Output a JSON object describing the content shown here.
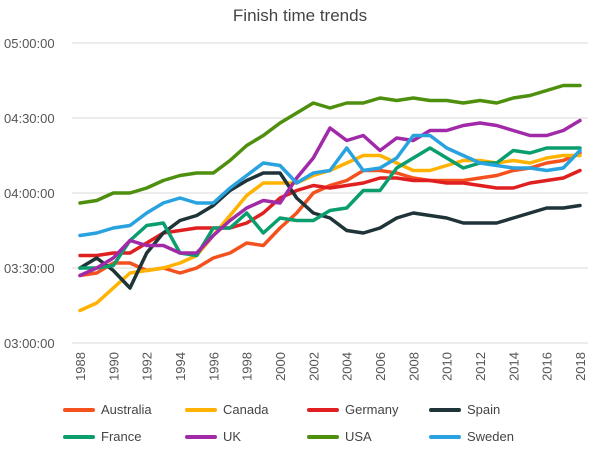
{
  "chart_data": {
    "type": "line",
    "title": "Finish time trends",
    "xlabel": "",
    "ylabel": "",
    "x": [
      1988,
      1989,
      1990,
      1991,
      1992,
      1993,
      1994,
      1995,
      1996,
      1997,
      1998,
      1999,
      2000,
      2001,
      2002,
      2003,
      2004,
      2005,
      2006,
      2007,
      2008,
      2009,
      2010,
      2011,
      2012,
      2013,
      2014,
      2015,
      2016,
      2017,
      2018
    ],
    "xticks": [
      "1988",
      "1990",
      "1992",
      "1994",
      "1996",
      "1998",
      "2000",
      "2002",
      "2004",
      "2006",
      "2008",
      "2010",
      "2012",
      "2014",
      "2016",
      "2018"
    ],
    "yticks": [
      "03:00:00",
      "03:30:00",
      "04:00:00",
      "04:30:00",
      "05:00:00"
    ],
    "ylim": [
      "03:00:00",
      "05:00:00"
    ],
    "grid": "horizontal",
    "legend_position": "bottom",
    "series": [
      {
        "name": "Australia",
        "color": "#f4511e",
        "values": [
          "03:27",
          "03:28",
          "03:32",
          "03:32",
          "03:29",
          "03:30",
          "03:28",
          "03:30",
          "03:34",
          "03:36",
          "03:40",
          "03:39",
          "03:46",
          "03:52",
          "04:00",
          "04:03",
          "04:05",
          "04:09",
          "04:09",
          "04:08",
          "04:06",
          "04:05",
          "04:05",
          "04:05",
          "04:06",
          "04:07",
          "04:09",
          "04:10",
          "04:12",
          "04:13",
          "04:16"
        ]
      },
      {
        "name": "Canada",
        "color": "#ffb300",
        "values": [
          "03:13",
          "03:16",
          "03:22",
          "03:28",
          "03:29",
          "03:30",
          "03:32",
          "03:35",
          "03:43",
          "03:51",
          "03:59",
          "04:04",
          "04:04",
          "04:04",
          "04:07",
          "04:09",
          "04:12",
          "04:15",
          "04:15",
          "04:12",
          "04:09",
          "04:09",
          "04:11",
          "04:13",
          "04:13",
          "04:12",
          "04:13",
          "04:12",
          "04:14",
          "04:15",
          "04:15"
        ]
      },
      {
        "name": "Germany",
        "color": "#e02020",
        "values": [
          "03:35",
          "03:35",
          "03:36",
          "03:36",
          "03:40",
          "03:44",
          "03:45",
          "03:46",
          "03:46",
          "03:46",
          "03:48",
          "03:52",
          "03:58",
          "04:01",
          "04:03",
          "04:02",
          "04:03",
          "04:04",
          "04:06",
          "04:06",
          "04:05",
          "04:05",
          "04:04",
          "04:04",
          "04:03",
          "04:02",
          "04:02",
          "04:04",
          "04:05",
          "04:06",
          "04:09"
        ]
      },
      {
        "name": "Spain",
        "color": "#1e3438",
        "values": [
          "03:30",
          "03:34",
          "03:29",
          "03:22",
          "03:36",
          "03:44",
          "03:49",
          "03:51",
          "03:55",
          "04:01",
          "04:05",
          "04:08",
          "04:08",
          "03:58",
          "03:52",
          "03:50",
          "03:45",
          "03:44",
          "03:46",
          "03:50",
          "03:52",
          "03:51",
          "03:50",
          "03:48",
          "03:48",
          "03:48",
          "03:50",
          "03:52",
          "03:54",
          "03:54",
          "03:55"
        ]
      },
      {
        "name": "France",
        "color": "#0a9e6e",
        "values": [
          "03:30",
          "03:30",
          "03:31",
          "03:41",
          "03:47",
          "03:48",
          "03:36",
          "03:35",
          "03:46",
          "03:46",
          "03:52",
          "03:44",
          "03:50",
          "03:49",
          "03:49",
          "03:53",
          "03:54",
          "04:01",
          "04:01",
          "04:10",
          "04:14",
          "04:18",
          "04:14",
          "04:10",
          "04:12",
          "04:12",
          "04:17",
          "04:16",
          "04:18",
          "04:18",
          "04:18"
        ]
      },
      {
        "name": "UK",
        "color": "#a02aa8",
        "values": [
          "03:27",
          "03:30",
          "03:34",
          "03:41",
          "03:39",
          "03:39",
          "03:36",
          "03:36",
          "03:43",
          "03:49",
          "03:54",
          "03:57",
          "03:56",
          "04:06",
          "04:14",
          "04:26",
          "04:21",
          "04:23",
          "04:17",
          "04:22",
          "04:21",
          "04:25",
          "04:25",
          "04:27",
          "04:28",
          "04:27",
          "04:25",
          "04:23",
          "04:23",
          "04:25",
          "04:29"
        ]
      },
      {
        "name": "USA",
        "color": "#4e8f0e",
        "values": [
          "03:56",
          "03:57",
          "04:00",
          "04:00",
          "04:02",
          "04:05",
          "04:07",
          "04:08",
          "04:08",
          "04:13",
          "04:19",
          "04:23",
          "04:28",
          "04:32",
          "04:36",
          "04:34",
          "04:36",
          "04:36",
          "04:38",
          "04:37",
          "04:38",
          "04:37",
          "04:37",
          "04:36",
          "04:37",
          "04:36",
          "04:38",
          "04:39",
          "04:41",
          "04:43",
          "04:43"
        ]
      },
      {
        "name": "Sweden",
        "color": "#29a3e0",
        "values": [
          "03:43",
          "03:44",
          "03:46",
          "03:47",
          "03:52",
          "03:56",
          "03:58",
          "03:56",
          "03:56",
          "04:02",
          "04:07",
          "04:12",
          "04:11",
          "04:04",
          "04:08",
          "04:09",
          "04:18",
          "04:09",
          "04:10",
          "04:14",
          "04:23",
          "04:23",
          "04:18",
          "04:15",
          "04:12",
          "04:11",
          "04:10",
          "04:10",
          "04:09",
          "04:10",
          "04:17"
        ]
      }
    ]
  }
}
